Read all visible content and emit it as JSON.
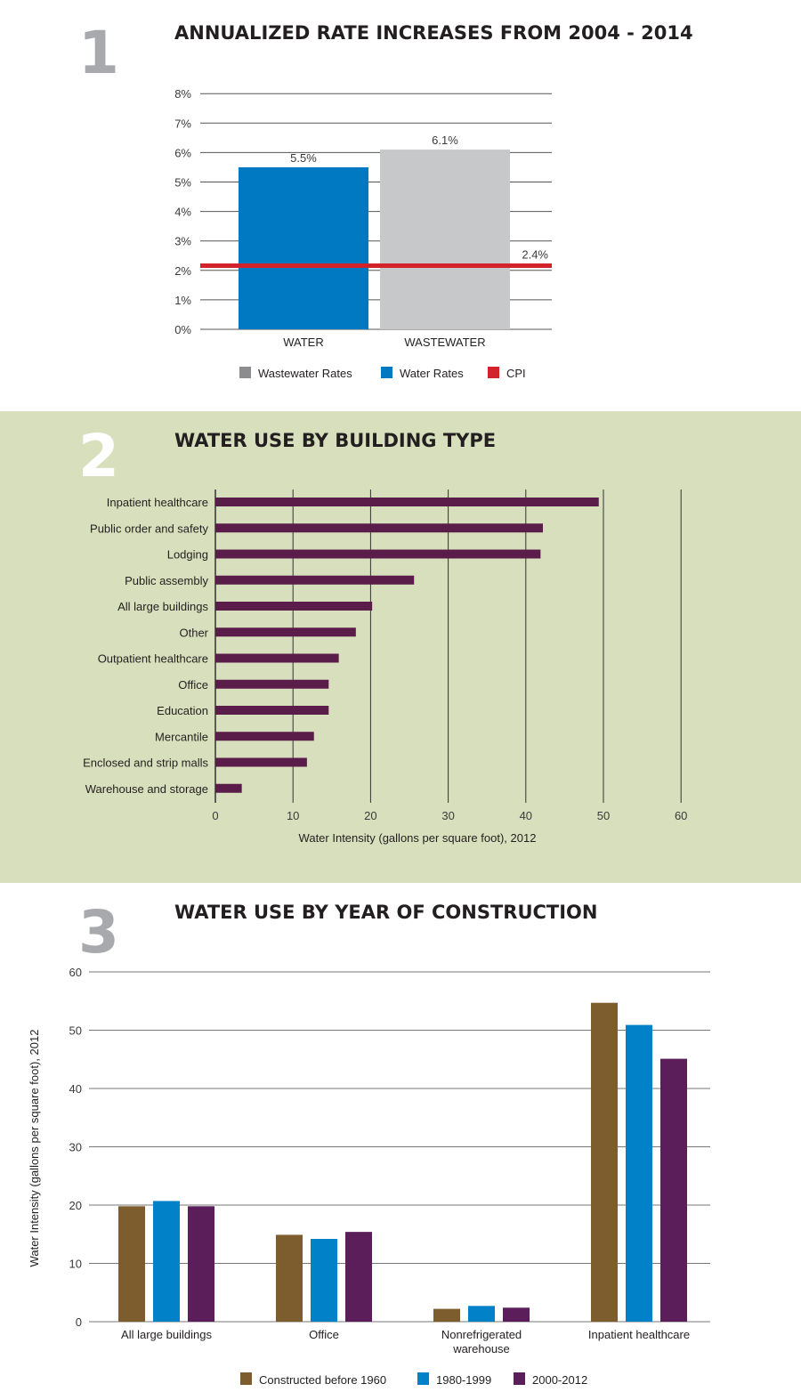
{
  "sections": [
    {
      "number": "1",
      "title": "ANNUALIZED RATE INCREASES FROM 2004 - 2014"
    },
    {
      "number": "2",
      "title": "WATER USE BY BUILDING TYPE"
    },
    {
      "number": "3",
      "title": "WATER USE BY YEAR OF CONSTRUCTION"
    }
  ],
  "colors": {
    "section2_background": "#d8dfbc",
    "water": "#0079c2",
    "wastewater": "#c7c8ca",
    "wastewater_legend": "#8c8c8e",
    "cpi": "#d2232a",
    "building_bar": "#5a1d4a",
    "before1960": "#7d5c2e",
    "y1980_1999": "#0081c8",
    "y2000_2012": "#5c1e5a"
  },
  "chart_data": [
    {
      "type": "bar",
      "title": "ANNUALIZED RATE INCREASES FROM 2004 - 2014",
      "categories": [
        "WATER",
        "WASTEWATER"
      ],
      "values": [
        5.5,
        6.1
      ],
      "value_labels": [
        "5.5%",
        "6.1%"
      ],
      "reference_line": {
        "name": "CPI",
        "value": 2.4,
        "label": "2.4%"
      },
      "ylim": [
        0,
        8
      ],
      "yticks": [
        "0%",
        "1%",
        "2%",
        "3%",
        "4%",
        "5%",
        "6%",
        "7%",
        "8%"
      ],
      "grid": true,
      "legend": [
        "Wastewater Rates",
        "Water Rates",
        "CPI"
      ],
      "legend_placement": "bottom"
    },
    {
      "type": "bar",
      "orientation": "horizontal",
      "title": "WATER USE BY BUILDING TYPE",
      "categories": [
        "Inpatient healthcare",
        "Public order and safety",
        "Lodging",
        "Public assembly",
        "All large buildings",
        "Other",
        "Outpatient healthcare",
        "Office",
        "Education",
        "Mercantile",
        "Enclosed and strip malls",
        "Warehouse and storage"
      ],
      "values": [
        49.4,
        42.2,
        41.9,
        25.6,
        20.2,
        18.1,
        15.9,
        14.6,
        14.6,
        12.7,
        11.8,
        3.4
      ],
      "xlim": [
        0,
        60
      ],
      "xticks": [
        "0",
        "10",
        "20",
        "30",
        "40",
        "50",
        "60"
      ],
      "xlabel": "Water Intensity (gallons per square foot), 2012",
      "grid": true
    },
    {
      "type": "bar",
      "title": "WATER USE BY YEAR OF CONSTRUCTION",
      "categories": [
        "All large buildings",
        "Office",
        "Nonrefrigerated warehouse",
        "Inpatient healthcare"
      ],
      "series": [
        {
          "name": "Constructed before 1960",
          "values": [
            19.8,
            14.9,
            2.2,
            54.7
          ]
        },
        {
          "name": "1980-1999",
          "values": [
            20.7,
            14.2,
            2.7,
            50.9
          ]
        },
        {
          "name": "2000-2012",
          "values": [
            19.8,
            15.4,
            2.4,
            45.1
          ]
        }
      ],
      "ylim": [
        0,
        60
      ],
      "yticks": [
        "0",
        "10",
        "20",
        "30",
        "40",
        "50",
        "60"
      ],
      "ylabel": "Water Intensity (gallons per square foot), 2012",
      "grid": true,
      "legend_placement": "bottom"
    }
  ]
}
